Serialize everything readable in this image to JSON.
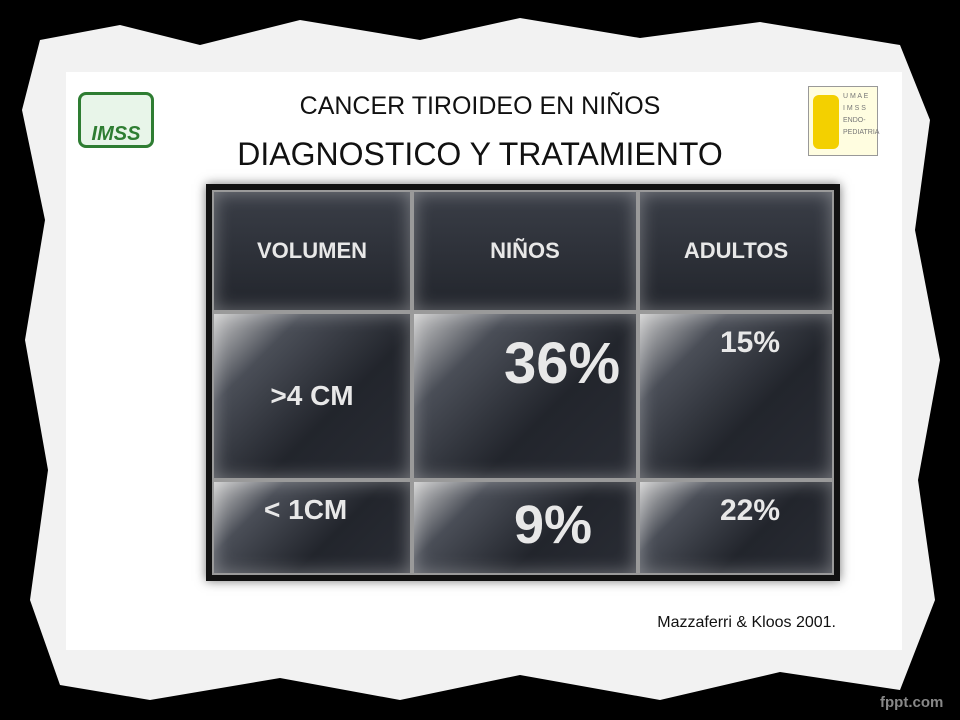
{
  "header": {
    "title": "CANCER TIROIDEO EN NIÑOS",
    "subtitle": "DIAGNOSTICO Y TRATAMIENTO"
  },
  "logos": {
    "left": "IMSS",
    "right": [
      "U M A E",
      "I M S S",
      "ENDO-",
      "PEDIATRIA"
    ]
  },
  "table": {
    "header": [
      "VOLUMEN",
      "NIÑOS",
      "ADULTOS"
    ],
    "rows": [
      [
        ">4 CM",
        "36%",
        "15%"
      ],
      [
        "< 1CM",
        "9%",
        "22%"
      ]
    ]
  },
  "citation": "Mazzaferri & Kloos 2001.",
  "watermark": "fppt.com"
}
